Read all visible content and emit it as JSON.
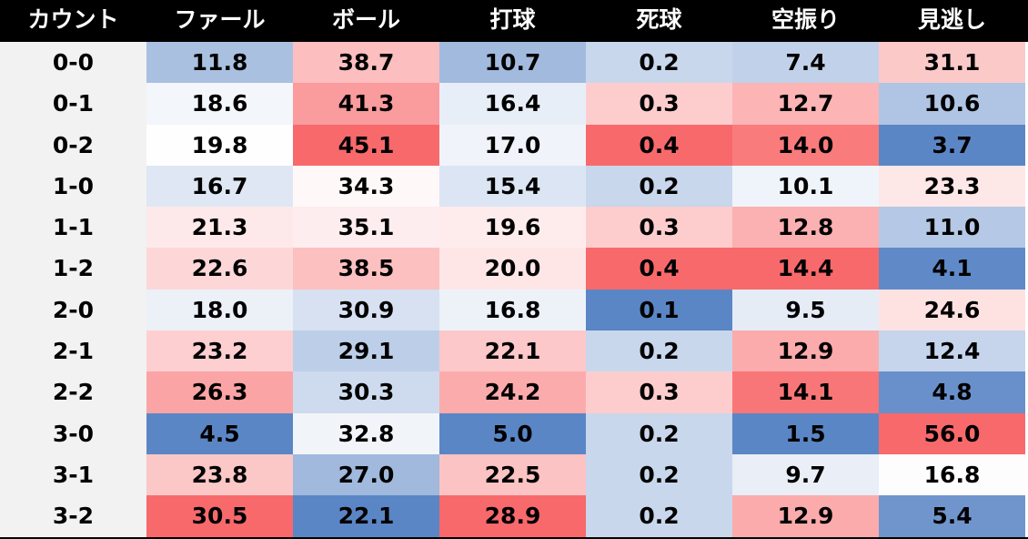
{
  "chart_data": {
    "type": "heatmap",
    "corner_label": "カウント",
    "columns": [
      "ファール",
      "ボール",
      "打球",
      "死球",
      "空振り",
      "見逃し"
    ],
    "rows": [
      {
        "count": "0-0",
        "values": [
          "11.8",
          "38.7",
          "10.7",
          "0.2",
          "7.4",
          "31.1"
        ]
      },
      {
        "count": "0-1",
        "values": [
          "18.6",
          "41.3",
          "16.4",
          "0.3",
          "12.7",
          "10.6"
        ]
      },
      {
        "count": "0-2",
        "values": [
          "19.8",
          "45.1",
          "17.0",
          "0.4",
          "14.0",
          "3.7"
        ]
      },
      {
        "count": "1-0",
        "values": [
          "16.7",
          "34.3",
          "15.4",
          "0.2",
          "10.1",
          "23.3"
        ]
      },
      {
        "count": "1-1",
        "values": [
          "21.3",
          "35.1",
          "19.6",
          "0.3",
          "12.8",
          "11.0"
        ]
      },
      {
        "count": "1-2",
        "values": [
          "22.6",
          "38.5",
          "20.0",
          "0.4",
          "14.4",
          "4.1"
        ]
      },
      {
        "count": "2-0",
        "values": [
          "18.0",
          "30.9",
          "16.8",
          "0.1",
          "9.5",
          "24.6"
        ]
      },
      {
        "count": "2-1",
        "values": [
          "23.2",
          "29.1",
          "22.1",
          "0.2",
          "12.9",
          "12.4"
        ]
      },
      {
        "count": "2-2",
        "values": [
          "26.3",
          "30.3",
          "24.2",
          "0.3",
          "14.1",
          "4.8"
        ]
      },
      {
        "count": "3-0",
        "values": [
          "4.5",
          "32.8",
          "5.0",
          "0.2",
          "1.5",
          "56.0"
        ]
      },
      {
        "count": "3-1",
        "values": [
          "23.8",
          "27.0",
          "22.5",
          "0.2",
          "9.7",
          "16.8"
        ]
      },
      {
        "count": "3-2",
        "values": [
          "30.5",
          "22.1",
          "28.9",
          "0.2",
          "12.9",
          "5.4"
        ]
      }
    ],
    "color_scale": {
      "low": "#5b86c5",
      "mid": "#ffffff",
      "high": "#f8696b",
      "direction": "per-column"
    }
  }
}
